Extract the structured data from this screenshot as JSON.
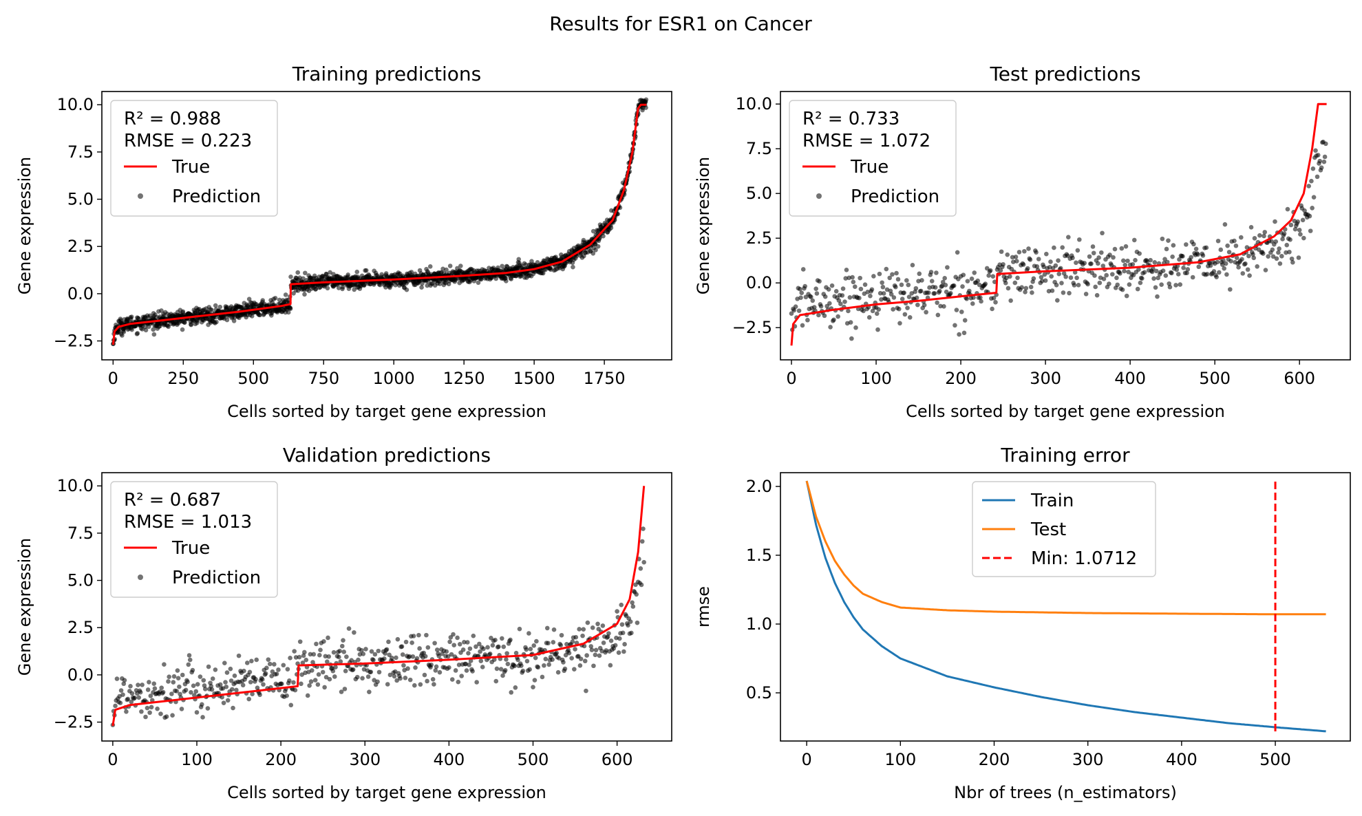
{
  "figure": {
    "title": "Results for ESR1 on Cancer"
  },
  "chart_data": [
    {
      "type": "scatter",
      "title": "Training predictions",
      "xlabel": "Cells sorted by target gene expression",
      "ylabel": "Gene expression",
      "xlim": [
        -40,
        1990
      ],
      "ylim": [
        -3.5,
        10.7
      ],
      "xticks": [
        0,
        250,
        500,
        750,
        1000,
        1250,
        1500,
        1750
      ],
      "yticks": [
        -2.5,
        0.0,
        2.5,
        5.0,
        7.5,
        10.0
      ],
      "n_cells": 1900,
      "legend": {
        "location": "upper left",
        "stats": [
          "R² = 0.988",
          "RMSE = 0.223"
        ],
        "entries": [
          "True",
          "Prediction"
        ]
      },
      "true_curve": [
        [
          0,
          -2.7
        ],
        [
          5,
          -2.0
        ],
        [
          20,
          -1.75
        ],
        [
          60,
          -1.6
        ],
        [
          150,
          -1.45
        ],
        [
          300,
          -1.2
        ],
        [
          450,
          -0.95
        ],
        [
          600,
          -0.65
        ],
        [
          632,
          -0.55
        ],
        [
          633,
          0.5
        ],
        [
          750,
          0.6
        ],
        [
          1000,
          0.75
        ],
        [
          1250,
          0.95
        ],
        [
          1400,
          1.1
        ],
        [
          1500,
          1.3
        ],
        [
          1600,
          1.7
        ],
        [
          1700,
          2.6
        ],
        [
          1780,
          3.9
        ],
        [
          1820,
          5.5
        ],
        [
          1850,
          7.5
        ],
        [
          1870,
          9.8
        ],
        [
          1880,
          10.0
        ],
        [
          1900,
          10.0
        ]
      ],
      "noise_sd": 0.2,
      "colors": {
        "true": "#ff0000",
        "prediction": "#000000"
      }
    },
    {
      "type": "scatter",
      "title": "Test predictions",
      "xlabel": "Cells sorted by target gene expression",
      "ylabel": "Gene expression",
      "xlim": [
        -13,
        660
      ],
      "ylim": [
        -4.3,
        10.7
      ],
      "xticks": [
        0,
        100,
        200,
        300,
        400,
        500,
        600
      ],
      "yticks": [
        -2.5,
        0.0,
        2.5,
        5.0,
        7.5,
        10.0
      ],
      "n_cells": 632,
      "legend": {
        "location": "upper left",
        "stats": [
          "R² = 0.733",
          "RMSE = 1.072"
        ],
        "entries": [
          "True",
          "Prediction"
        ]
      },
      "true_curve": [
        [
          0,
          -3.5
        ],
        [
          2,
          -2.3
        ],
        [
          10,
          -1.8
        ],
        [
          50,
          -1.5
        ],
        [
          100,
          -1.2
        ],
        [
          150,
          -1.0
        ],
        [
          200,
          -0.75
        ],
        [
          242,
          -0.55
        ],
        [
          243,
          0.5
        ],
        [
          300,
          0.65
        ],
        [
          400,
          0.85
        ],
        [
          480,
          1.15
        ],
        [
          530,
          1.6
        ],
        [
          570,
          2.6
        ],
        [
          590,
          3.5
        ],
        [
          605,
          5.0
        ],
        [
          615,
          7.5
        ],
        [
          622,
          10.0
        ],
        [
          632,
          10.0
        ]
      ],
      "noise_sd": 0.75,
      "colors": {
        "true": "#ff0000",
        "prediction": "#000000"
      }
    },
    {
      "type": "scatter",
      "title": "Validation predictions",
      "xlabel": "Cells sorted by target gene expression",
      "ylabel": "Gene expression",
      "xlim": [
        -13,
        665
      ],
      "ylim": [
        -3.5,
        10.7
      ],
      "xticks": [
        0,
        100,
        200,
        300,
        400,
        500,
        600
      ],
      "yticks": [
        -2.5,
        0.0,
        2.5,
        5.0,
        7.5,
        10.0
      ],
      "n_cells": 633,
      "legend": {
        "location": "upper left",
        "stats": [
          "R² = 0.687",
          "RMSE = 1.013"
        ],
        "entries": [
          "True",
          "Prediction"
        ]
      },
      "true_curve": [
        [
          0,
          -2.7
        ],
        [
          3,
          -1.85
        ],
        [
          20,
          -1.6
        ],
        [
          80,
          -1.3
        ],
        [
          150,
          -0.95
        ],
        [
          220,
          -0.6
        ],
        [
          221,
          0.5
        ],
        [
          300,
          0.6
        ],
        [
          400,
          0.8
        ],
        [
          500,
          1.05
        ],
        [
          560,
          1.65
        ],
        [
          600,
          2.7
        ],
        [
          615,
          4.0
        ],
        [
          625,
          6.5
        ],
        [
          632,
          10.0
        ]
      ],
      "noise_sd": 0.7,
      "colors": {
        "true": "#ff0000",
        "prediction": "#000000"
      }
    },
    {
      "type": "line",
      "title": "Training error",
      "xlabel": "Nbr of trees (n_estimators)",
      "ylabel": "rmse",
      "xlim": [
        -28,
        580
      ],
      "ylim": [
        0.15,
        2.1
      ],
      "xticks": [
        0,
        100,
        200,
        300,
        400,
        500
      ],
      "yticks": [
        0.5,
        1.0,
        1.5,
        2.0
      ],
      "legend": {
        "location": "upper center",
        "entries": [
          "Train",
          "Test",
          "Min: 1.0712"
        ]
      },
      "series": [
        {
          "name": "Train",
          "color": "#1f77b4",
          "points": [
            [
              0,
              2.04
            ],
            [
              10,
              1.72
            ],
            [
              20,
              1.48
            ],
            [
              30,
              1.3
            ],
            [
              40,
              1.16
            ],
            [
              50,
              1.05
            ],
            [
              60,
              0.96
            ],
            [
              80,
              0.84
            ],
            [
              100,
              0.75
            ],
            [
              150,
              0.62
            ],
            [
              200,
              0.54
            ],
            [
              250,
              0.47
            ],
            [
              300,
              0.41
            ],
            [
              350,
              0.36
            ],
            [
              400,
              0.32
            ],
            [
              450,
              0.28
            ],
            [
              500,
              0.25
            ],
            [
              555,
              0.22
            ]
          ]
        },
        {
          "name": "Test",
          "color": "#ff7f0e",
          "points": [
            [
              0,
              2.04
            ],
            [
              10,
              1.78
            ],
            [
              20,
              1.6
            ],
            [
              30,
              1.46
            ],
            [
              40,
              1.36
            ],
            [
              50,
              1.28
            ],
            [
              60,
              1.22
            ],
            [
              80,
              1.16
            ],
            [
              100,
              1.12
            ],
            [
              150,
              1.1
            ],
            [
              200,
              1.09
            ],
            [
              300,
              1.08
            ],
            [
              400,
              1.075
            ],
            [
              500,
              1.071
            ],
            [
              555,
              1.071
            ]
          ]
        }
      ],
      "min_marker": {
        "label": "Min: 1.0712",
        "x": 500,
        "y_from": 0.22,
        "y_to": 2.04,
        "color": "#ff0000"
      }
    }
  ]
}
